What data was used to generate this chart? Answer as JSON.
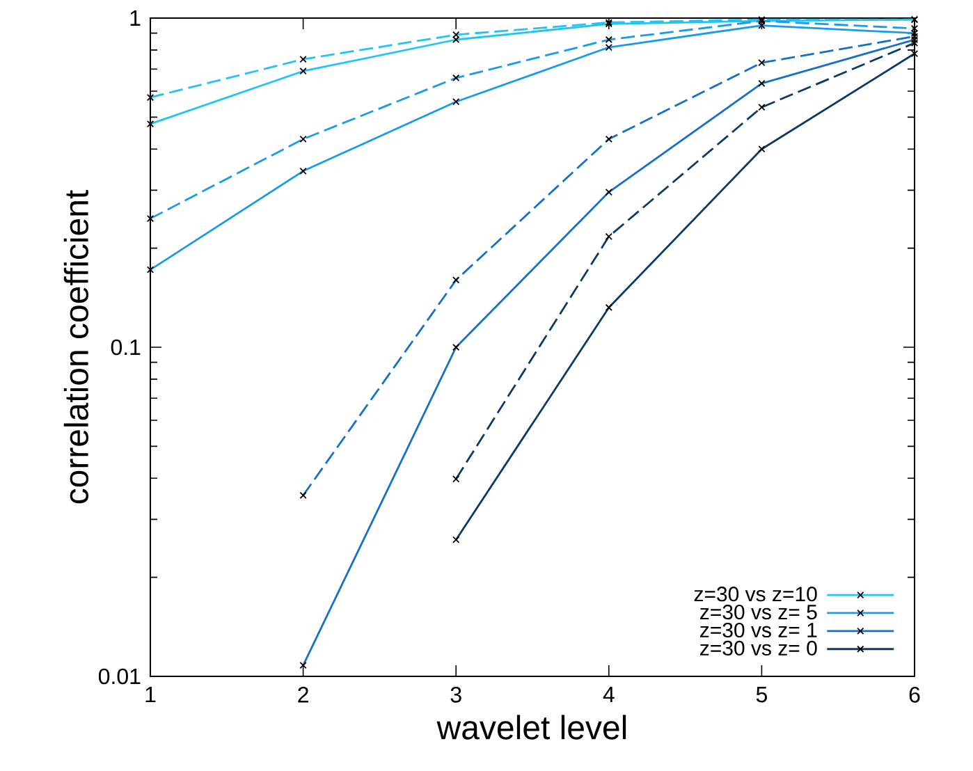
{
  "chart_data": {
    "type": "line",
    "xlabel": "wavelet level",
    "ylabel": "correlation coefficient",
    "x": [
      1,
      2,
      3,
      4,
      5,
      6
    ],
    "series": [
      {
        "name": "z=30 vs z=10",
        "color": "#22c4f4",
        "line_style": "solid",
        "values": [
          0.477,
          0.69,
          0.86,
          0.96,
          0.98,
          0.99
        ]
      },
      {
        "name": "z=30 vs z= 5",
        "color": "#1a9be8",
        "line_style": "solid",
        "values": [
          0.172,
          0.343,
          0.557,
          0.815,
          0.95,
          0.9
        ]
      },
      {
        "name": "z=30 vs z= 1",
        "color": "#1570c8",
        "line_style": "solid",
        "values": [
          null,
          0.0108,
          0.1,
          0.296,
          0.633,
          0.86
        ]
      },
      {
        "name": "z=30 vs z= 0",
        "color": "#0c3a66",
        "line_style": "solid",
        "values": [
          null,
          null,
          0.026,
          0.132,
          0.4,
          0.78
        ]
      },
      {
        "color": "#22c4f4",
        "line_style": "dashed",
        "values": [
          0.574,
          0.75,
          0.89,
          0.97,
          0.99,
          0.99
        ]
      },
      {
        "color": "#1a9be8",
        "line_style": "dashed",
        "values": [
          0.246,
          0.429,
          0.658,
          0.86,
          0.98,
          0.93
        ]
      },
      {
        "color": "#1570c8",
        "line_style": "dashed",
        "values": [
          null,
          0.0355,
          0.16,
          0.429,
          0.732,
          0.88
        ]
      },
      {
        "color": "#0c3a66",
        "line_style": "dashed",
        "values": [
          null,
          null,
          0.0398,
          0.217,
          0.536,
          0.84
        ]
      }
    ],
    "log": "y",
    "xlim": [
      1,
      6
    ],
    "ylim": [
      0.01,
      1
    ],
    "xticks": [
      1,
      2,
      3,
      4,
      5,
      6
    ],
    "yticks": [
      0.01,
      0.1,
      1
    ],
    "marker": "cross",
    "legend": "bottom right",
    "grid": false
  }
}
